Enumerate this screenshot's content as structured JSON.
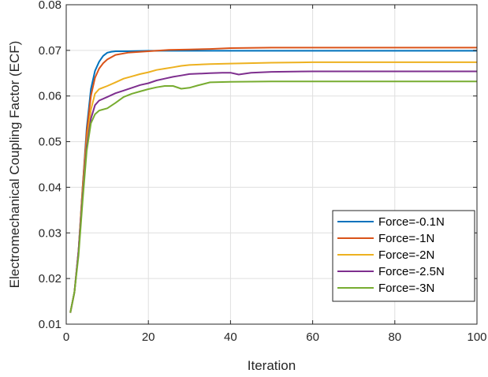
{
  "chart_data": {
    "type": "line",
    "xlabel": "Iteration",
    "ylabel": "Electromechanical Coupling Factor (ECF)",
    "xlim": [
      0,
      100
    ],
    "ylim": [
      0.01,
      0.08
    ],
    "xticks": [
      0,
      20,
      40,
      60,
      80,
      100
    ],
    "yticks": [
      0.01,
      0.02,
      0.03,
      0.04,
      0.05,
      0.06,
      0.07,
      0.08
    ],
    "grid": true,
    "legend_position": "bottom-right",
    "series": [
      {
        "name": "Force=-0.1N",
        "color": "#0072BD",
        "x": [
          1,
          2,
          3,
          4,
          5,
          6,
          7,
          8,
          9,
          10,
          11,
          12,
          15,
          20,
          30,
          40,
          60,
          80,
          100
        ],
        "y": [
          0.0125,
          0.017,
          0.026,
          0.04,
          0.053,
          0.0615,
          0.0655,
          0.0675,
          0.0688,
          0.0695,
          0.0697,
          0.0698,
          0.0698,
          0.0699,
          0.0699,
          0.0699,
          0.0699,
          0.0699,
          0.0699
        ]
      },
      {
        "name": "Force=-1N",
        "color": "#D95319",
        "x": [
          1,
          2,
          3,
          4,
          5,
          6,
          7,
          8,
          9,
          10,
          12,
          15,
          20,
          25,
          30,
          35,
          40,
          50,
          60,
          80,
          100
        ],
        "y": [
          0.0125,
          0.017,
          0.026,
          0.04,
          0.052,
          0.06,
          0.064,
          0.066,
          0.0672,
          0.068,
          0.069,
          0.0695,
          0.0698,
          0.0701,
          0.0702,
          0.0703,
          0.0705,
          0.0706,
          0.0706,
          0.0706,
          0.0706
        ]
      },
      {
        "name": "Force=-2N",
        "color": "#EDB120",
        "x": [
          1,
          2,
          3,
          4,
          5,
          6,
          7,
          8,
          10,
          12,
          14,
          16,
          18,
          20,
          22,
          24,
          26,
          28,
          30,
          35,
          40,
          50,
          60,
          80,
          100
        ],
        "y": [
          0.0125,
          0.017,
          0.026,
          0.039,
          0.05,
          0.057,
          0.0605,
          0.0615,
          0.0622,
          0.063,
          0.0638,
          0.0643,
          0.0648,
          0.0652,
          0.0657,
          0.066,
          0.0663,
          0.0666,
          0.0668,
          0.067,
          0.0671,
          0.0673,
          0.0674,
          0.0674,
          0.0674
        ]
      },
      {
        "name": "Force=-2.5N",
        "color": "#7E2F8E",
        "x": [
          1,
          2,
          3,
          4,
          5,
          6,
          7,
          8,
          10,
          12,
          14,
          16,
          18,
          20,
          22,
          24,
          26,
          28,
          30,
          35,
          38,
          40,
          42,
          45,
          50,
          60,
          80,
          100
        ],
        "y": [
          0.0125,
          0.017,
          0.026,
          0.038,
          0.049,
          0.055,
          0.058,
          0.059,
          0.0598,
          0.0606,
          0.0612,
          0.0618,
          0.0624,
          0.0628,
          0.0634,
          0.0638,
          0.0642,
          0.0645,
          0.0648,
          0.065,
          0.0651,
          0.0651,
          0.0647,
          0.0651,
          0.0653,
          0.0654,
          0.0654,
          0.0654
        ]
      },
      {
        "name": "Force=-3N",
        "color": "#77AC30",
        "x": [
          1,
          2,
          3,
          4,
          5,
          6,
          7,
          8,
          10,
          12,
          14,
          16,
          18,
          20,
          22,
          24,
          26,
          28,
          30,
          32,
          35,
          40,
          50,
          60,
          80,
          100
        ],
        "y": [
          0.0125,
          0.017,
          0.025,
          0.037,
          0.048,
          0.054,
          0.056,
          0.0568,
          0.0573,
          0.0585,
          0.0598,
          0.0605,
          0.061,
          0.0615,
          0.0619,
          0.0622,
          0.0622,
          0.0616,
          0.0618,
          0.0623,
          0.063,
          0.0631,
          0.0632,
          0.0632,
          0.0632,
          0.0632
        ]
      }
    ]
  }
}
